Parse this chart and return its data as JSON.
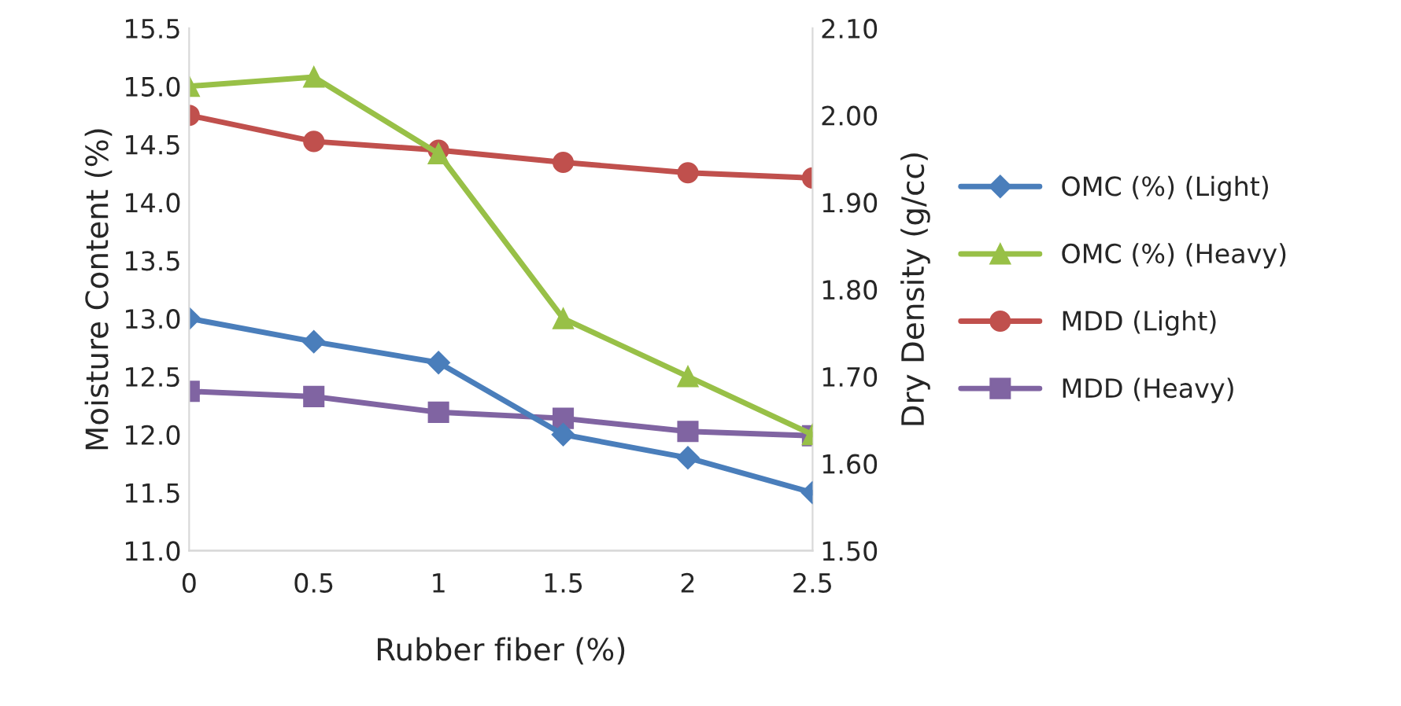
{
  "chart_data": {
    "type": "line",
    "xlabel": "Rubber fiber (%)",
    "ylabel": "Moisture Content (%)",
    "y2label": "Dry Density (g/cc)",
    "x": [
      0,
      0.5,
      1,
      1.5,
      2,
      2.5
    ],
    "xlim": [
      0,
      2.5
    ],
    "xticks": [
      0,
      0.5,
      1,
      1.5,
      2,
      2.5
    ],
    "ylim": [
      11.0,
      15.5
    ],
    "yticks": [
      {
        "value": 11.0,
        "label": "11.0"
      },
      {
        "value": 11.5,
        "label": "11.5"
      },
      {
        "value": 12.0,
        "label": "12.0"
      },
      {
        "value": 12.5,
        "label": "12.5"
      },
      {
        "value": 13.0,
        "label": "13.0"
      },
      {
        "value": 13.5,
        "label": "13.5"
      },
      {
        "value": 14.0,
        "label": "14.0"
      },
      {
        "value": 14.5,
        "label": "14.5"
      },
      {
        "value": 15.0,
        "label": "15.0"
      },
      {
        "value": 15.5,
        "label": "15.5"
      }
    ],
    "y2lim": [
      1.5,
      2.1
    ],
    "y2ticks": [
      {
        "value": 1.5,
        "label": "1.50"
      },
      {
        "value": 1.6,
        "label": "1.60"
      },
      {
        "value": 1.7,
        "label": "1.70"
      },
      {
        "value": 1.8,
        "label": "1.80"
      },
      {
        "value": 1.9,
        "label": "1.90"
      },
      {
        "value": 2.0,
        "label": "2.00"
      },
      {
        "value": 2.1,
        "label": "2.10"
      }
    ],
    "grid": false,
    "legend": "right",
    "line_style": "solid",
    "series": [
      {
        "name": "OMC (%) (Light)",
        "color": "#4a7ebb",
        "marker": "diamond",
        "values": [
          13.0,
          12.8,
          12.62,
          12.0,
          11.8,
          11.5
        ]
      },
      {
        "name": "OMC (%) (Heavy)",
        "color": "#98c047",
        "marker": "triangle",
        "values": [
          15.0,
          15.08,
          14.42,
          13.0,
          12.5,
          12.0
        ]
      },
      {
        "name": "MDD (Light)",
        "color": "#c0504d",
        "marker": "circle",
        "axis": "y2",
        "values": [
          2.0,
          1.97,
          1.96,
          1.946,
          1.934,
          1.928
        ]
      },
      {
        "name": "MDD (Heavy)",
        "color": "#8064a2",
        "marker": "square",
        "axis": "y2",
        "values": [
          1.683,
          1.677,
          1.659,
          1.652,
          1.637,
          1.632
        ]
      }
    ]
  }
}
